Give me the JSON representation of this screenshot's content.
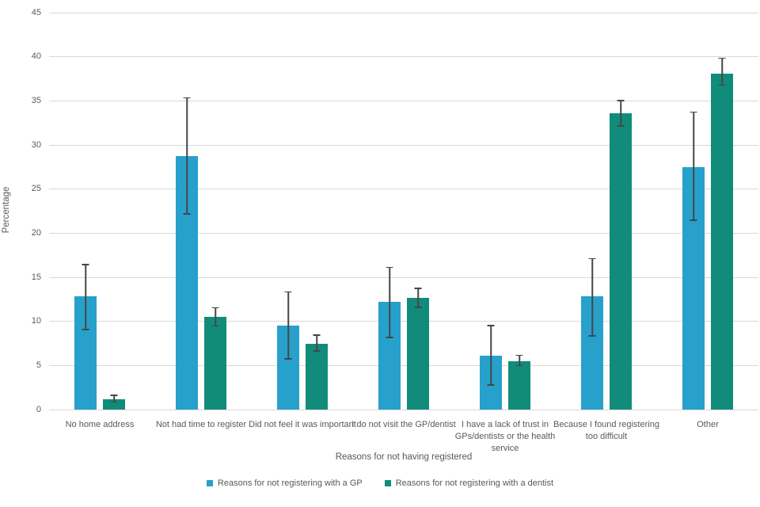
{
  "chart_data": {
    "type": "bar",
    "title": "",
    "xlabel": "Reasons for not having registered",
    "ylabel": "Percentage",
    "ylim": [
      0,
      45
    ],
    "ytick_step": 5,
    "grid": true,
    "legend_position": "bottom",
    "error_bars": true,
    "categories": [
      "No home address",
      "Not had time to register",
      "Did not feel it was important",
      "I do not visit the GP/dentist",
      "I have a lack of trust in GPs/dentists or the health service",
      "Because I found registering too difficult",
      "Other"
    ],
    "series": [
      {
        "name": "Reasons for not registering with a GP",
        "color": "#27A0CC",
        "values": [
          12.8,
          28.7,
          9.5,
          12.2,
          6.1,
          12.8,
          27.5
        ],
        "error_low": [
          9.0,
          22.1,
          5.7,
          8.1,
          2.7,
          8.3,
          21.4
        ],
        "error_high": [
          16.5,
          35.4,
          13.4,
          16.2,
          9.6,
          17.2,
          33.8
        ]
      },
      {
        "name": "Reasons for not registering with a dentist",
        "color": "#118C7B",
        "values": [
          1.2,
          10.5,
          7.5,
          12.7,
          5.5,
          33.6,
          38.1
        ],
        "error_low": [
          0.8,
          9.4,
          6.6,
          11.5,
          4.9,
          32.1,
          36.7
        ],
        "error_high": [
          1.7,
          11.6,
          8.5,
          13.8,
          6.2,
          35.1,
          39.9
        ]
      }
    ],
    "colors": {
      "gridline": "#d9d9d9",
      "error_bar": "#464646",
      "text": "#595959",
      "background": "#ffffff"
    }
  }
}
